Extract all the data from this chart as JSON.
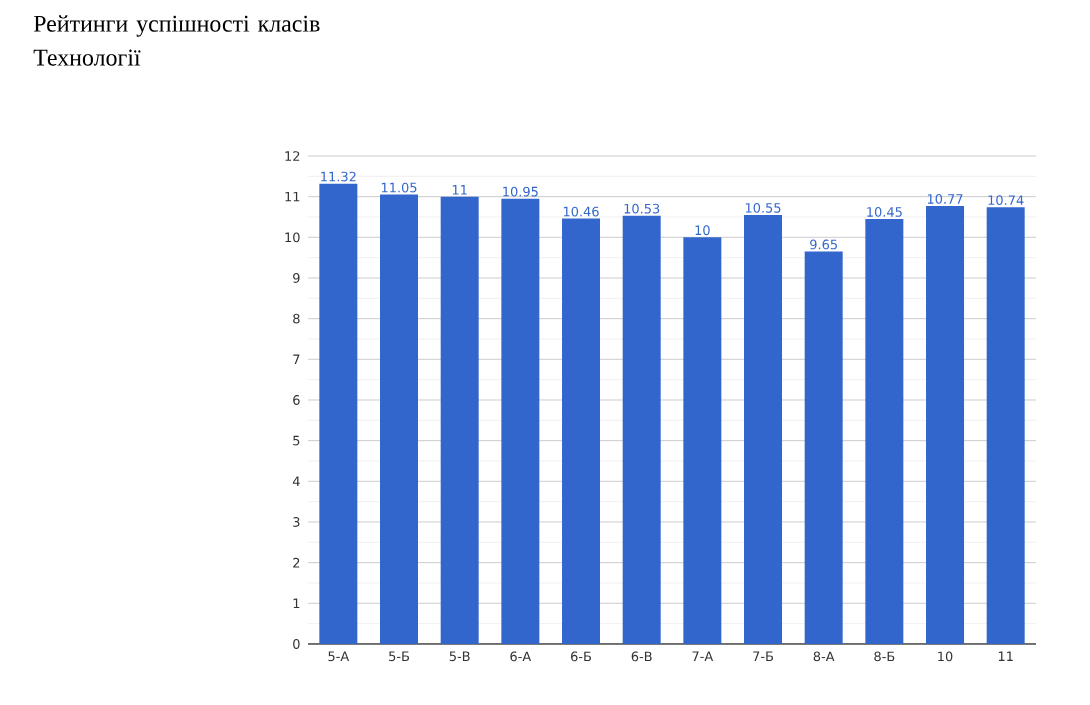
{
  "chart_data": {
    "type": "bar",
    "title": "Рейтинги успішності класів Технології",
    "categories": [
      "5-А",
      "5-Б",
      "5-В",
      "6-А",
      "6-Б",
      "6-В",
      "7-А",
      "7-Б",
      "8-А",
      "8-Б",
      "10",
      "11"
    ],
    "values": [
      11.32,
      11.05,
      11,
      10.95,
      10.46,
      10.53,
      10,
      10.55,
      9.65,
      10.45,
      10.77,
      10.74
    ],
    "color": "#3366cc",
    "ylim": [
      0,
      12
    ],
    "yticks": [
      0,
      1,
      2,
      3,
      4,
      5,
      6,
      7,
      8,
      9,
      10,
      11,
      12
    ],
    "grid": "y",
    "data_labels": true
  }
}
